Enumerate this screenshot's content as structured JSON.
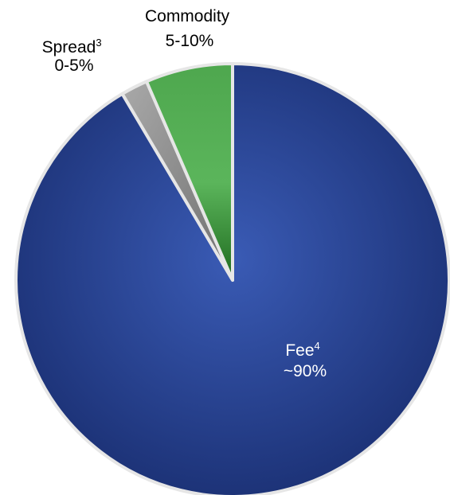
{
  "chart_data": {
    "type": "pie",
    "slices": [
      {
        "name": "Fee",
        "footnote": "4",
        "value_label": "~90%",
        "value": 91.5,
        "color": "#1f3a8a",
        "text_color": "#ffffff"
      },
      {
        "name": "Spread",
        "footnote": "3",
        "value_label": "0-5%",
        "value": 2.0,
        "color": "#8a8a8a",
        "text_color": "#000000"
      },
      {
        "name": "Commodity",
        "footnote": "",
        "value_label": "5-10%",
        "value": 6.5,
        "color": "#2e8b2e",
        "text_color": "#000000"
      }
    ]
  }
}
